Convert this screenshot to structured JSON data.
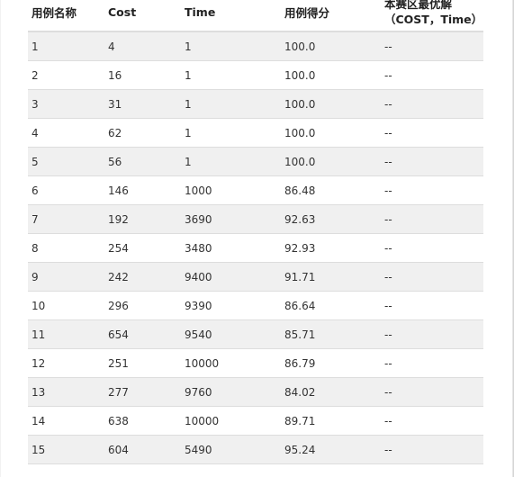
{
  "table": {
    "headers": {
      "name": "用例名称",
      "cost": "Cost",
      "time": "Time",
      "score": "用例得分",
      "best_line1": "本赛区最优解",
      "best_line2": "（COST，Time）"
    },
    "rows": [
      {
        "name": "1",
        "cost": "4",
        "time": "1",
        "score": "100.0",
        "best": "--"
      },
      {
        "name": "2",
        "cost": "16",
        "time": "1",
        "score": "100.0",
        "best": "--"
      },
      {
        "name": "3",
        "cost": "31",
        "time": "1",
        "score": "100.0",
        "best": "--"
      },
      {
        "name": "4",
        "cost": "62",
        "time": "1",
        "score": "100.0",
        "best": "--"
      },
      {
        "name": "5",
        "cost": "56",
        "time": "1",
        "score": "100.0",
        "best": "--"
      },
      {
        "name": "6",
        "cost": "146",
        "time": "1000",
        "score": "86.48",
        "best": "--"
      },
      {
        "name": "7",
        "cost": "192",
        "time": "3690",
        "score": "92.63",
        "best": "--"
      },
      {
        "name": "8",
        "cost": "254",
        "time": "3480",
        "score": "92.93",
        "best": "--"
      },
      {
        "name": "9",
        "cost": "242",
        "time": "9400",
        "score": "91.71",
        "best": "--"
      },
      {
        "name": "10",
        "cost": "296",
        "time": "9390",
        "score": "86.64",
        "best": "--"
      },
      {
        "name": "11",
        "cost": "654",
        "time": "9540",
        "score": "85.71",
        "best": "--"
      },
      {
        "name": "12",
        "cost": "251",
        "time": "10000",
        "score": "86.79",
        "best": "--"
      },
      {
        "name": "13",
        "cost": "277",
        "time": "9760",
        "score": "84.02",
        "best": "--"
      },
      {
        "name": "14",
        "cost": "638",
        "time": "10000",
        "score": "89.71",
        "best": "--"
      },
      {
        "name": "15",
        "cost": "604",
        "time": "5490",
        "score": "95.24",
        "best": "--"
      }
    ]
  }
}
